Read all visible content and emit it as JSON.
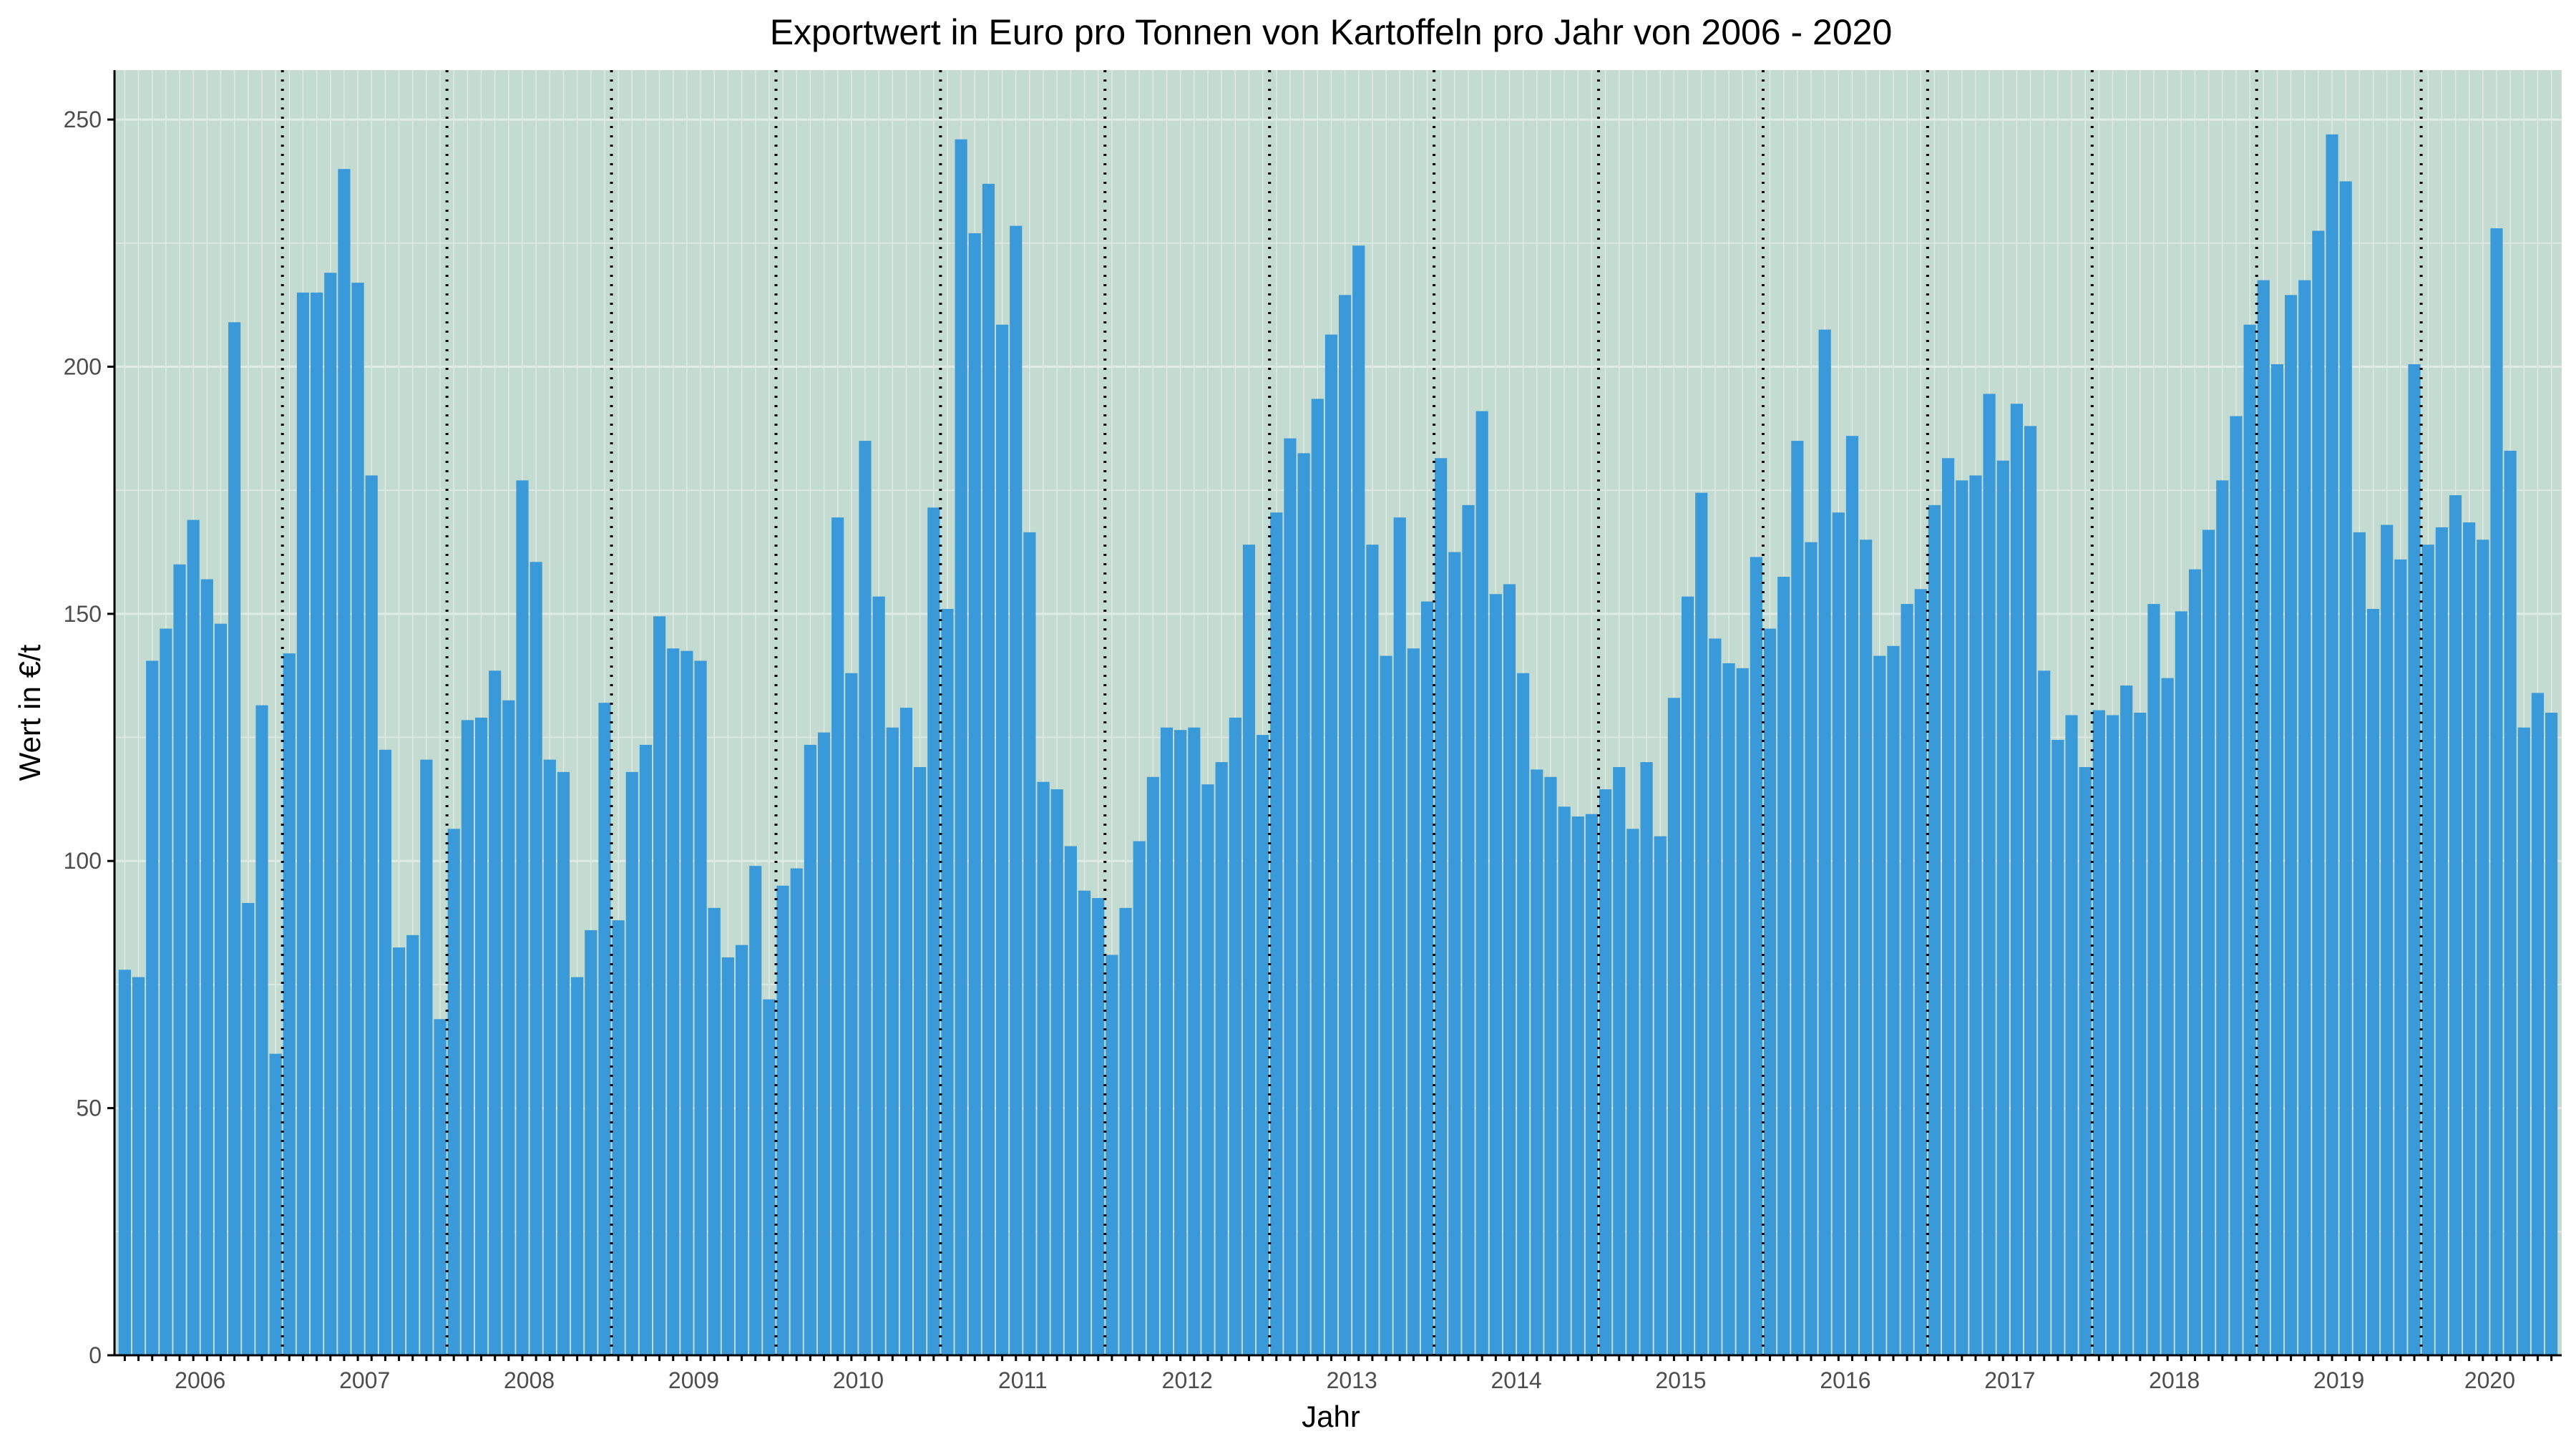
{
  "chart_data": {
    "type": "bar",
    "title": "Exportwert in Euro pro Tonnen von Kartoffeln pro Jahr von 2006 - 2020",
    "xlabel": "Jahr",
    "ylabel": "Wert in €/t",
    "ylim": [
      0,
      260
    ],
    "yticks": [
      0,
      50,
      100,
      150,
      200,
      250
    ],
    "grid": true,
    "legend": "none",
    "colors": {
      "panel": "#c4dbd1",
      "bar": "#3a9ad9",
      "grid": "#e0ebe6",
      "axis": "#000000"
    },
    "years": [
      "2006",
      "2007",
      "2008",
      "2009",
      "2010",
      "2011",
      "2012",
      "2013",
      "2014",
      "2015",
      "2016",
      "2017",
      "2018",
      "2019",
      "2020"
    ],
    "x_note": "monthly values Jan 2006 – Jun 2020",
    "values": [
      78,
      76.5,
      140.5,
      147,
      160,
      169,
      157,
      148,
      209,
      91.5,
      131.5,
      61,
      142,
      215,
      215,
      219,
      240,
      217,
      178,
      122.5,
      82.5,
      85,
      120.5,
      68,
      106.5,
      128.5,
      129,
      138.5,
      132.5,
      177,
      160.5,
      120.5,
      118,
      76.5,
      86,
      132,
      88,
      118,
      123.5,
      149.5,
      143,
      142.5,
      140.5,
      90.5,
      80.5,
      83,
      99,
      72,
      95,
      98.5,
      123.5,
      126,
      169.5,
      138,
      185,
      153.5,
      127,
      131,
      119,
      171.5,
      151,
      246,
      227,
      237,
      208.5,
      228.5,
      166.5,
      116,
      114.5,
      103,
      94,
      92.5,
      81,
      90.5,
      104,
      117,
      127,
      126.5,
      127,
      115.5,
      120,
      129,
      164,
      125.5,
      170.5,
      185.5,
      182.5,
      193.5,
      206.5,
      214.5,
      224.5,
      164,
      141.5,
      169.5,
      143,
      152.5,
      181.5,
      162.5,
      172,
      191,
      154,
      156,
      138,
      118.5,
      117,
      111,
      109,
      109.5,
      114.5,
      119,
      106.5,
      120,
      105,
      133,
      153.5,
      174.5,
      145,
      140,
      139,
      161.5,
      147,
      157.5,
      185,
      164.5,
      207.5,
      170.5,
      186,
      165,
      141.5,
      143.5,
      152,
      155,
      172,
      181.5,
      177,
      178,
      194.5,
      181,
      192.5,
      188,
      138.5,
      124.5,
      129.5,
      119,
      130.5,
      129.5,
      135.5,
      130,
      152,
      137,
      150.5,
      159,
      167,
      177,
      190,
      208.5,
      217.5,
      200.5,
      214.5,
      217.5,
      227.5,
      247,
      237.5,
      166.5,
      151,
      168,
      161,
      200.5,
      164,
      167.5,
      174,
      168.5,
      165,
      228,
      183,
      127,
      134,
      130
    ]
  }
}
